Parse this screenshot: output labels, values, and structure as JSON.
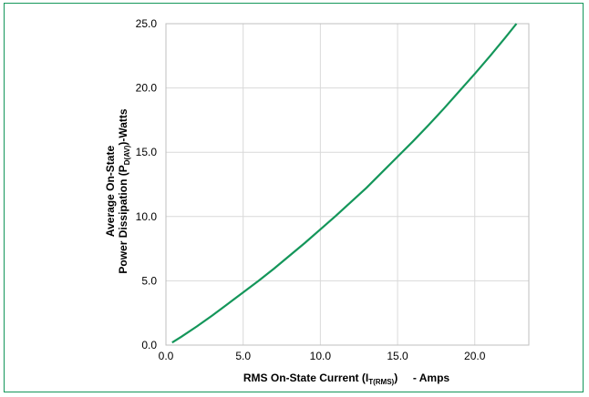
{
  "chart_data": {
    "type": "line",
    "xlabel": {
      "main": "RMS On-State Current (I",
      "sub": "T(RMS)",
      "tail": ")     - Amps"
    },
    "ylabel": {
      "line1": "Average On-State",
      "line2_main": "Power Dissipation (P",
      "line2_sub": "D(AV)",
      "line2_tail": ")-Watts"
    },
    "xlim": [
      0,
      23.5
    ],
    "ylim": [
      0,
      25
    ],
    "xticks": [
      0.0,
      5.0,
      10.0,
      15.0,
      20.0
    ],
    "xtick_labels": [
      "0.0",
      "5.0",
      "10.0",
      "15.0",
      "20.0"
    ],
    "yticks": [
      0.0,
      5.0,
      10.0,
      15.0,
      20.0,
      25.0
    ],
    "ytick_labels": [
      "0.0",
      "5.0",
      "10.0",
      "15.0",
      "20.0",
      "25.0"
    ],
    "grid": true,
    "series": [
      {
        "color": "#14965a",
        "x": [
          0.4,
          1,
          2,
          3,
          4,
          5,
          6,
          7,
          8,
          9,
          10,
          11,
          12,
          13,
          14,
          15,
          16,
          17,
          18,
          19,
          20,
          21,
          22,
          22.7
        ],
        "y": [
          0.2,
          0.65,
          1.45,
          2.3,
          3.2,
          4.1,
          5.0,
          5.95,
          6.95,
          7.95,
          9.0,
          10.05,
          11.15,
          12.25,
          13.45,
          14.65,
          15.85,
          17.1,
          18.4,
          19.75,
          21.1,
          22.5,
          23.95,
          25.0
        ]
      }
    ]
  }
}
